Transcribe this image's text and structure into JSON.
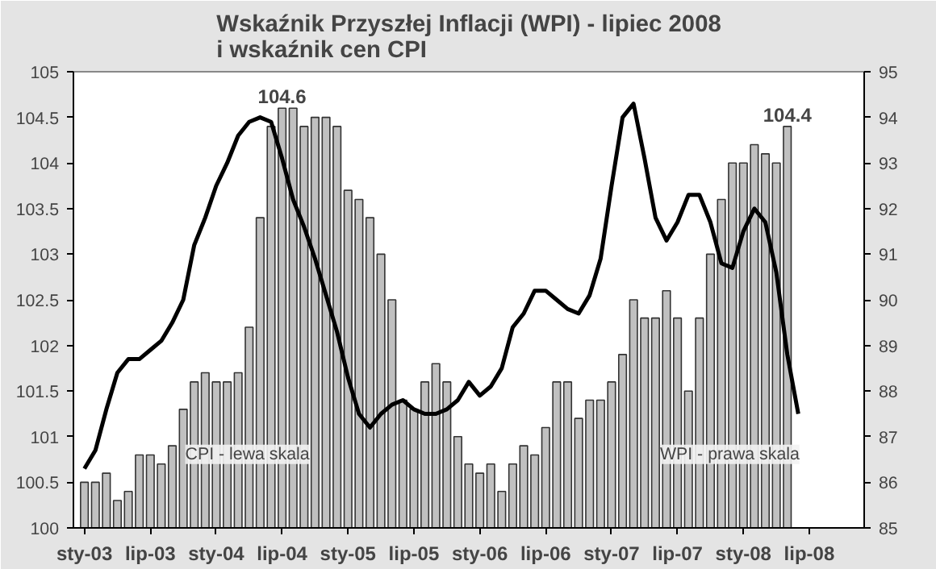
{
  "chart_data": {
    "type": "bar",
    "title": "Wskaźnik Przyszłej Inflacji (WPI) - lipiec 2008\ni wskaźnik cen CPI",
    "x": [
      "2003-01",
      "2003-02",
      "2003-03",
      "2003-04",
      "2003-05",
      "2003-06",
      "2003-07",
      "2003-08",
      "2003-09",
      "2003-10",
      "2003-11",
      "2003-12",
      "2004-01",
      "2004-02",
      "2004-03",
      "2004-04",
      "2004-05",
      "2004-06",
      "2004-07",
      "2004-08",
      "2004-09",
      "2004-10",
      "2004-11",
      "2004-12",
      "2005-01",
      "2005-02",
      "2005-03",
      "2005-04",
      "2005-05",
      "2005-06",
      "2005-07",
      "2005-08",
      "2005-09",
      "2005-10",
      "2005-11",
      "2005-12",
      "2006-01",
      "2006-02",
      "2006-03",
      "2006-04",
      "2006-05",
      "2006-06",
      "2006-07",
      "2006-08",
      "2006-09",
      "2006-10",
      "2006-11",
      "2006-12",
      "2007-01",
      "2007-02",
      "2007-03",
      "2007-04",
      "2007-05",
      "2007-06",
      "2007-07",
      "2007-08",
      "2007-09",
      "2007-10",
      "2007-11",
      "2007-12",
      "2008-01",
      "2008-02",
      "2008-03",
      "2008-04",
      "2008-05"
    ],
    "series": [
      {
        "color": "#c0c0c0",
        "values": [
          100.5,
          100.5,
          100.6,
          100.3,
          100.4,
          100.8,
          100.8,
          100.7,
          100.9,
          101.3,
          101.6,
          101.7,
          101.6,
          101.6,
          101.7,
          102.2,
          103.4,
          104.4,
          104.6,
          104.6,
          104.4,
          104.5,
          104.5,
          104.4,
          103.7,
          103.6,
          103.4,
          103.0,
          102.5,
          101.4,
          101.3,
          101.6,
          101.8,
          101.6,
          101.0,
          100.7,
          100.6,
          100.7,
          100.4,
          100.7,
          100.9,
          100.8,
          101.1,
          101.6,
          101.6,
          101.2,
          101.4,
          101.4,
          101.6,
          101.9,
          102.5,
          102.3,
          102.3,
          102.6,
          102.3,
          101.5,
          102.3,
          103.0,
          103.6,
          104.0,
          104.0,
          104.2,
          104.1,
          104.0,
          104.4
        ]
      },
      {
        "type": "line",
        "axis": "y2",
        "color": "#000000",
        "x": [
          "2003-01",
          "2003-02",
          "2003-03",
          "2003-04",
          "2003-05",
          "2003-06",
          "2003-07",
          "2003-08",
          "2003-09",
          "2003-10",
          "2003-11",
          "2003-12",
          "2004-01",
          "2004-02",
          "2004-03",
          "2004-04",
          "2004-05",
          "2004-06",
          "2004-07",
          "2004-08",
          "2004-09",
          "2004-10",
          "2004-11",
          "2004-12",
          "2005-01",
          "2005-02",
          "2005-03",
          "2005-04",
          "2005-05",
          "2005-06",
          "2005-07",
          "2005-08",
          "2005-09",
          "2005-10",
          "2005-11",
          "2005-12",
          "2006-01",
          "2006-02",
          "2006-03",
          "2006-04",
          "2006-05",
          "2006-06",
          "2006-07",
          "2006-08",
          "2006-09",
          "2006-10",
          "2006-11",
          "2006-12",
          "2007-01",
          "2007-02",
          "2007-03",
          "2007-04",
          "2007-05",
          "2007-06",
          "2007-07",
          "2007-08",
          "2007-09",
          "2007-10",
          "2007-11",
          "2007-12",
          "2008-01",
          "2008-02",
          "2008-03",
          "2008-04",
          "2008-05",
          "2008-06"
        ],
        "values": [
          86.3,
          86.7,
          87.6,
          88.4,
          88.7,
          88.7,
          88.9,
          89.1,
          89.5,
          90.0,
          91.2,
          91.8,
          92.5,
          93.0,
          93.6,
          93.9,
          94.0,
          93.9,
          93.1,
          92.2,
          91.6,
          90.9,
          90.1,
          89.3,
          88.3,
          87.5,
          87.2,
          87.5,
          87.7,
          87.8,
          87.6,
          87.5,
          87.5,
          87.6,
          87.8,
          88.2,
          87.9,
          88.1,
          88.5,
          89.4,
          89.7,
          90.2,
          90.2,
          90.0,
          89.8,
          89.7,
          90.1,
          90.9,
          92.5,
          94.0,
          94.3,
          93.1,
          91.8,
          91.3,
          91.7,
          92.3,
          92.3,
          91.7,
          90.8,
          90.7,
          91.5,
          92.0,
          91.7,
          90.6,
          88.8,
          87.5
        ]
      }
    ],
    "xlim": [
      "2002-12",
      "2008-12"
    ],
    "xticks": [
      {
        "value": "2003-01",
        "label": "sty-03"
      },
      {
        "value": "2003-07",
        "label": "lip-03"
      },
      {
        "value": "2004-01",
        "label": "sty-04"
      },
      {
        "value": "2004-07",
        "label": "lip-04"
      },
      {
        "value": "2005-01",
        "label": "sty-05"
      },
      {
        "value": "2005-07",
        "label": "lip-05"
      },
      {
        "value": "2006-01",
        "label": "sty-06"
      },
      {
        "value": "2006-07",
        "label": "lip-06"
      },
      {
        "value": "2007-01",
        "label": "sty-07"
      },
      {
        "value": "2007-07",
        "label": "lip-07"
      },
      {
        "value": "2008-01",
        "label": "sty-08"
      },
      {
        "value": "2008-07",
        "label": "lip-08"
      }
    ],
    "ylim": [
      100,
      105
    ],
    "yticks": [
      100,
      100.5,
      101,
      101.5,
      102,
      102.5,
      103,
      103.5,
      104,
      104.5,
      105
    ],
    "y2lim": [
      85,
      95
    ],
    "y2ticks": [
      85,
      86,
      87,
      88,
      89,
      90,
      91,
      92,
      93,
      94,
      95
    ],
    "annotations": [
      {
        "text": "104.6",
        "x": "2004-07",
        "y": 104.6
      },
      {
        "text": "104.4",
        "x": "2008-05",
        "y": 104.4
      },
      "CPI - lewa skala",
      "WPI - prawa skala"
    ],
    "grid": false,
    "line_style": "solid",
    "marker": "none"
  }
}
